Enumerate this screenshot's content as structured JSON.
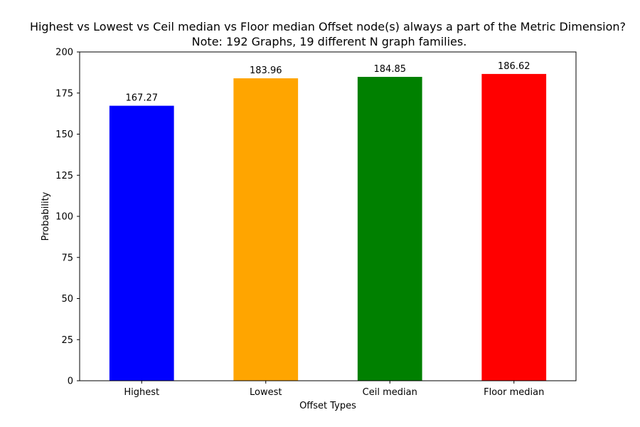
{
  "chart_data": {
    "type": "bar",
    "title": "Highest vs Lowest vs Ceil median vs Floor median Offset node(s) always a part of the Metric Dimension?",
    "subtitle": "Note: 192 Graphs, 19 different N graph families.",
    "xlabel": "Offset Types",
    "ylabel": "Probability",
    "categories": [
      "Highest",
      "Lowest",
      "Ceil median",
      "Floor median"
    ],
    "values": [
      167.27,
      183.96,
      184.85,
      186.62
    ],
    "data_labels": [
      "167.27",
      "183.96",
      "184.85",
      "186.62"
    ],
    "colors": [
      "#0000ff",
      "#ffa500",
      "#008000",
      "#ff0000"
    ],
    "ylim": [
      0,
      200
    ],
    "yticks": [
      0,
      25,
      50,
      75,
      100,
      125,
      150,
      175,
      200
    ],
    "grid": false,
    "legend": "none"
  }
}
